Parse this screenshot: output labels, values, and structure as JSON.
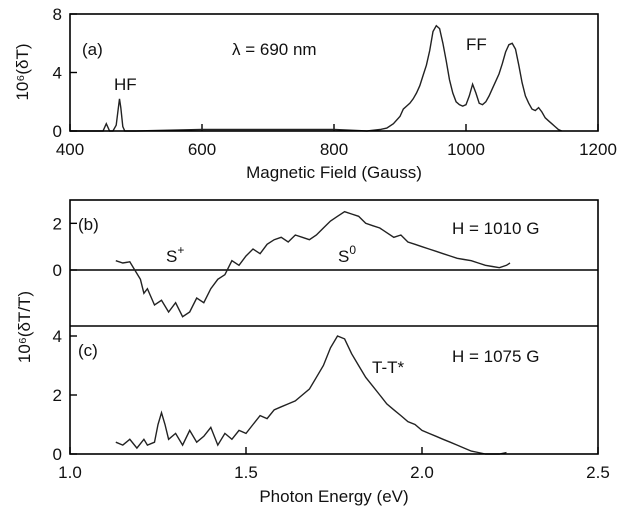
{
  "chart_data": [
    {
      "type": "line",
      "panel_label": "(a)",
      "xlabel": "Magnetic Field (Gauss)",
      "ylabel": "10⁶(δT)",
      "xlim": [
        400,
        1200
      ],
      "ylim": [
        0,
        8
      ],
      "xticks": [
        400,
        600,
        800,
        1000,
        1200
      ],
      "yticks": [
        0,
        4,
        8
      ],
      "annotations": [
        "λ = 690 nm",
        "HF",
        "FF"
      ],
      "series": [
        {
          "x": [
            400,
            450,
            455,
            460,
            465,
            470,
            473,
            475,
            477,
            480,
            483,
            490,
            500,
            600,
            700,
            800,
            850,
            870,
            880,
            890,
            900,
            905,
            910,
            915,
            920,
            925,
            930,
            935,
            940,
            945,
            950,
            955,
            960,
            965,
            970,
            975,
            980,
            985,
            990,
            995,
            1000,
            1005,
            1010,
            1015,
            1020,
            1025,
            1030,
            1035,
            1040,
            1045,
            1050,
            1055,
            1060,
            1065,
            1070,
            1075,
            1080,
            1085,
            1090,
            1095,
            1100,
            1105,
            1110,
            1115,
            1120,
            1125,
            1130,
            1135,
            1140,
            1145
          ],
          "y": [
            0,
            0,
            0.5,
            0,
            0,
            0.4,
            1.5,
            2.2,
            1.6,
            0.3,
            0,
            0,
            0,
            0.1,
            0.1,
            0.1,
            0,
            0.1,
            0.2,
            0.5,
            1.0,
            1.5,
            1.7,
            1.9,
            2.2,
            2.6,
            3.1,
            3.8,
            4.5,
            5.5,
            6.8,
            7.2,
            7.0,
            6.0,
            4.8,
            3.5,
            2.6,
            2.0,
            1.8,
            1.7,
            1.8,
            2.4,
            3.2,
            2.6,
            1.9,
            1.8,
            2.0,
            2.4,
            2.9,
            3.4,
            3.9,
            4.6,
            5.4,
            5.9,
            6.0,
            5.6,
            4.5,
            3.3,
            2.4,
            1.9,
            1.5,
            1.4,
            1.6,
            1.3,
            0.9,
            0.7,
            0.5,
            0.3,
            0.1,
            0
          ]
        }
      ]
    },
    {
      "type": "line",
      "panel_label": "(b)",
      "xlim": [
        1.0,
        2.5
      ],
      "ylim": [
        -2.4,
        3
      ],
      "yticks": [
        0,
        2
      ],
      "annotations": [
        "H = 1010 G",
        "S",
        "+",
        "S",
        "0"
      ],
      "series": [
        {
          "x": [
            1.13,
            1.15,
            1.17,
            1.18,
            1.2,
            1.21,
            1.22,
            1.24,
            1.26,
            1.28,
            1.3,
            1.32,
            1.34,
            1.36,
            1.38,
            1.4,
            1.42,
            1.44,
            1.46,
            1.48,
            1.5,
            1.52,
            1.54,
            1.56,
            1.58,
            1.6,
            1.62,
            1.64,
            1.66,
            1.68,
            1.7,
            1.72,
            1.74,
            1.76,
            1.78,
            1.8,
            1.82,
            1.84,
            1.86,
            1.88,
            1.9,
            1.92,
            1.94,
            1.96,
            1.98,
            2.0,
            2.02,
            2.04,
            2.06,
            2.08,
            2.1,
            2.12,
            2.14,
            2.16,
            2.18,
            2.2,
            2.22,
            2.24,
            2.25
          ],
          "y": [
            0.4,
            0.3,
            0.35,
            0.1,
            -0.4,
            -1.0,
            -0.8,
            -1.5,
            -1.3,
            -1.8,
            -1.4,
            -2.0,
            -1.8,
            -1.2,
            -1.4,
            -0.8,
            -0.4,
            -0.2,
            0.4,
            0.2,
            0.6,
            0.9,
            0.7,
            1.1,
            1.3,
            1.4,
            1.2,
            1.5,
            1.4,
            1.3,
            1.5,
            1.8,
            2.1,
            2.3,
            2.5,
            2.4,
            2.3,
            2.0,
            1.9,
            1.8,
            1.6,
            1.4,
            1.5,
            1.2,
            1.1,
            1.0,
            0.9,
            0.8,
            0.7,
            0.6,
            0.5,
            0.45,
            0.4,
            0.3,
            0.2,
            0.15,
            0.1,
            0.2,
            0.3
          ]
        }
      ]
    },
    {
      "type": "line",
      "panel_label": "(c)",
      "xlabel": "Photon Energy (eV)",
      "ylabel": "10⁶(δT/T)",
      "xlim": [
        1.0,
        2.5
      ],
      "ylim": [
        0,
        4
      ],
      "xticks": [
        1.0,
        1.5,
        2.0,
        2.5
      ],
      "xtick_labels": [
        "1.0",
        "1.5",
        "2.0",
        "2.5"
      ],
      "yticks": [
        0,
        2,
        4
      ],
      "annotations": [
        "H = 1075 G",
        "T-T*"
      ],
      "series": [
        {
          "x": [
            1.13,
            1.15,
            1.17,
            1.19,
            1.21,
            1.22,
            1.24,
            1.25,
            1.26,
            1.27,
            1.28,
            1.3,
            1.32,
            1.34,
            1.36,
            1.38,
            1.4,
            1.42,
            1.44,
            1.46,
            1.48,
            1.5,
            1.52,
            1.54,
            1.56,
            1.58,
            1.6,
            1.62,
            1.64,
            1.66,
            1.68,
            1.7,
            1.72,
            1.74,
            1.76,
            1.78,
            1.8,
            1.82,
            1.84,
            1.86,
            1.88,
            1.9,
            1.92,
            1.94,
            1.96,
            1.98,
            2.0,
            2.02,
            2.04,
            2.06,
            2.08,
            2.1,
            2.12,
            2.14,
            2.16,
            2.18,
            2.2,
            2.22,
            2.24
          ],
          "y": [
            0.4,
            0.3,
            0.5,
            0.2,
            0.5,
            0.3,
            0.4,
            1.0,
            1.4,
            1.0,
            0.5,
            0.7,
            0.3,
            0.8,
            0.4,
            0.6,
            0.9,
            0.3,
            0.7,
            0.5,
            0.8,
            0.7,
            1.0,
            1.3,
            1.2,
            1.5,
            1.6,
            1.7,
            1.8,
            2.0,
            2.2,
            2.6,
            3.0,
            3.6,
            4.0,
            3.9,
            3.4,
            3.0,
            2.6,
            2.3,
            2.0,
            1.7,
            1.5,
            1.3,
            1.1,
            1.0,
            0.8,
            0.7,
            0.6,
            0.5,
            0.4,
            0.3,
            0.2,
            0.1,
            0.05,
            0,
            0,
            0,
            0.05
          ]
        }
      ]
    }
  ]
}
